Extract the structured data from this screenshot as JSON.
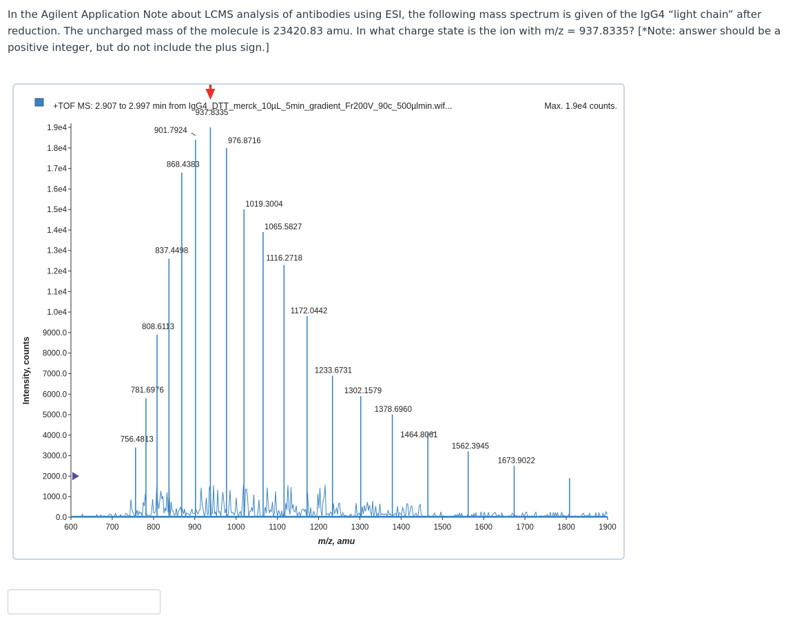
{
  "question": {
    "text": "In the Agilent Application Note about LCMS analysis of antibodies using ESI, the following mass spectrum is given of the IgG4 “light chain” after reduction.  The uncharged mass of the molecule is 23420.83 amu.  In what charge state is the ion with m/z = 937.8335?  [*Note: answer should be a positive integer, but do not include the plus sign.]"
  },
  "answer": {
    "value": "",
    "placeholder": ""
  },
  "colors": {
    "trace": "#3d86c6",
    "arrow": "#e8322b",
    "legend_box": "#3f7fc0",
    "frame": "#c7d6e4",
    "marker": "#5a4e9c"
  },
  "chart_data": {
    "type": "line",
    "title": "+TOF MS: 2.907 to 2.997 min from IgG4_DTT_merck_10µL_5min_gradient_Fr200V_90c_500µlmin.wif...",
    "max_label": "Max. 1.9e4 counts.",
    "xlabel": "m/z, amu",
    "ylabel": "Intensity, counts",
    "xlim": [
      600,
      1900
    ],
    "ylim": [
      0,
      19000
    ],
    "x_ticks": [
      "600",
      "700",
      "800",
      "900",
      "1000",
      "1100",
      "1200",
      "1300",
      "1400",
      "1500",
      "1600",
      "1700",
      "1800",
      "1900"
    ],
    "y_ticks": [
      {
        "v": 19000,
        "label": "1.9e4"
      },
      {
        "v": 18000,
        "label": "1.8e4"
      },
      {
        "v": 17000,
        "label": "1.7e4"
      },
      {
        "v": 16000,
        "label": "1.6e4"
      },
      {
        "v": 15000,
        "label": "1.5e4"
      },
      {
        "v": 14000,
        "label": "1.4e4"
      },
      {
        "v": 13000,
        "label": "1.3e4"
      },
      {
        "v": 12000,
        "label": "1.2e4"
      },
      {
        "v": 11000,
        "label": "1.1e4"
      },
      {
        "v": 10000,
        "label": "1.0e4"
      },
      {
        "v": 9000,
        "label": "9000.0"
      },
      {
        "v": 8000,
        "label": "8000.0"
      },
      {
        "v": 7000,
        "label": "7000.0"
      },
      {
        "v": 6000,
        "label": "6000.0"
      },
      {
        "v": 5000,
        "label": "5000.0"
      },
      {
        "v": 4000,
        "label": "4000.0"
      },
      {
        "v": 3000,
        "label": "3000.0"
      },
      {
        "v": 2000,
        "label": "2000.0"
      },
      {
        "v": 1000,
        "label": "1000.0"
      },
      {
        "v": 0,
        "label": "0.0"
      }
    ],
    "peaks": [
      {
        "x": 756.4813,
        "y": 3400,
        "label": "756.4813"
      },
      {
        "x": 781.6976,
        "y": 5800,
        "label": "781.6976"
      },
      {
        "x": 808.6113,
        "y": 8900,
        "label": "808.6113"
      },
      {
        "x": 837.4498,
        "y": 12600,
        "label": "837.4498"
      },
      {
        "x": 868.4383,
        "y": 16800,
        "label": "868.4383"
      },
      {
        "x": 901.7924,
        "y": 18400,
        "label": "901.7924"
      },
      {
        "x": 937.8335,
        "y": 19000,
        "label": "937.8335"
      },
      {
        "x": 976.8716,
        "y": 18000,
        "label": "976.8716"
      },
      {
        "x": 1019.3004,
        "y": 15000,
        "label": "1019.3004"
      },
      {
        "x": 1065.5827,
        "y": 13900,
        "label": "1065.5827"
      },
      {
        "x": 1116.2718,
        "y": 12300,
        "label": "1116.2718"
      },
      {
        "x": 1172.0442,
        "y": 9800,
        "label": "1172.0442"
      },
      {
        "x": 1233.6731,
        "y": 6900,
        "label": "1233.6731"
      },
      {
        "x": 1302.1579,
        "y": 5900,
        "label": "1302.1579"
      },
      {
        "x": 1378.696,
        "y": 5000,
        "label": "1378.6960"
      },
      {
        "x": 1464.8061,
        "y": 4100,
        "label": "1464.8061"
      },
      {
        "x": 1562.3945,
        "y": 3200,
        "label": "1562.3945"
      },
      {
        "x": 1673.9022,
        "y": 2500,
        "label": "1673.9022"
      },
      {
        "x": 1808.0,
        "y": 1900,
        "label": ""
      }
    ],
    "grid": false,
    "legend": "top-left"
  }
}
